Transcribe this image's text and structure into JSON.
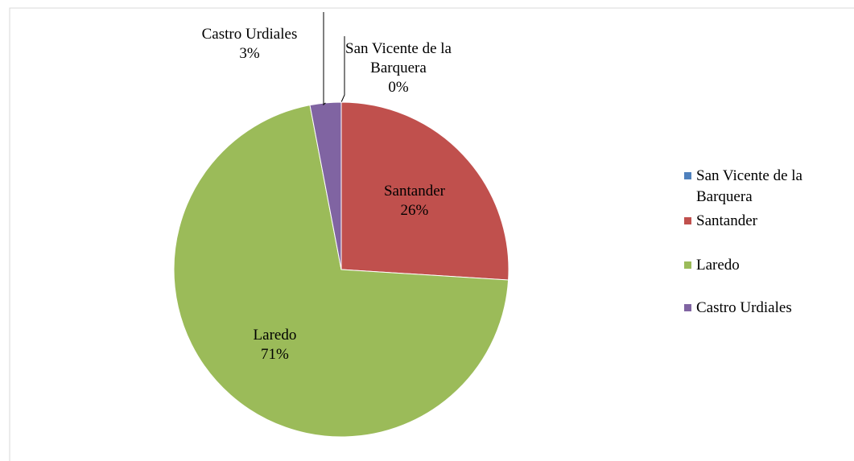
{
  "chart_data": {
    "type": "pie",
    "categories": [
      "San Vicente de la Barquera",
      "Santander",
      "Laredo",
      "Castro Urdiales"
    ],
    "values": [
      0,
      26,
      71,
      3
    ],
    "value_labels": [
      "0%",
      "26%",
      "71%",
      "3%"
    ],
    "colors": [
      "#4f81bd",
      "#c0504d",
      "#9bbb59",
      "#8064a2"
    ],
    "legend": "right"
  }
}
